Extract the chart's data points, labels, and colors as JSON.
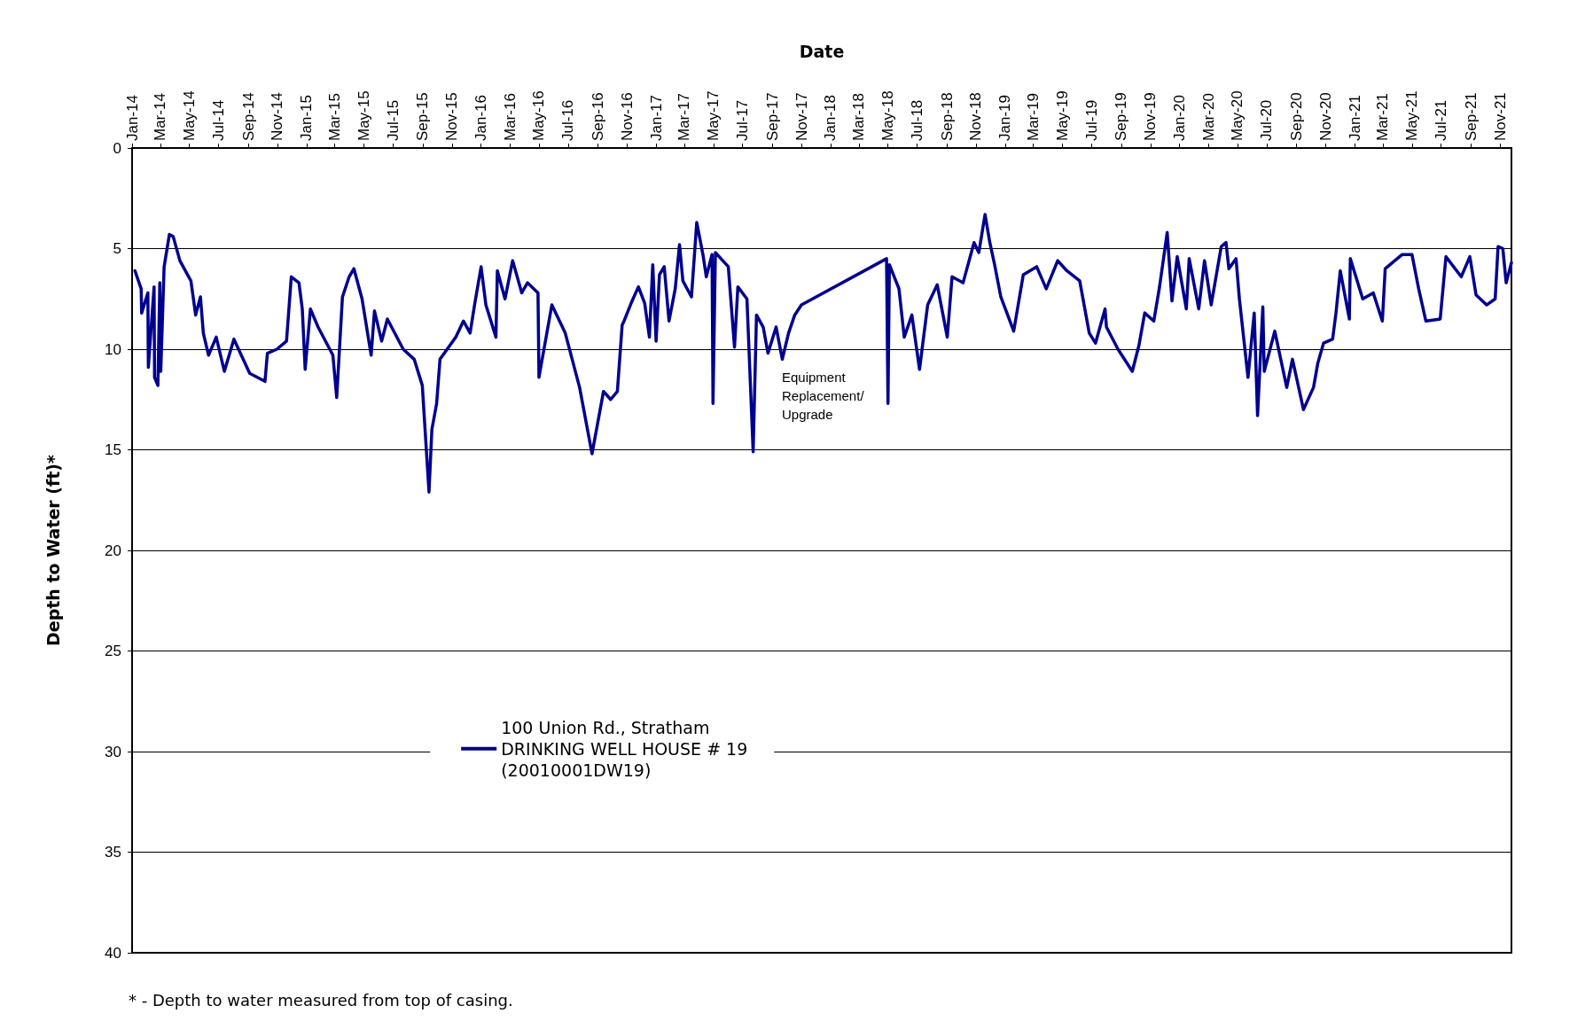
{
  "chart_data": {
    "type": "line",
    "xlabel": "Date",
    "ylabel": "Depth to Water (ft)*",
    "xlim": [
      "2014-01-01",
      "2021-11-25"
    ],
    "xticks": [
      {
        "value": "2014-01-01",
        "label": "Jan-14"
      },
      {
        "value": "2014-03-01",
        "label": "Mar-14"
      },
      {
        "value": "2014-05-01",
        "label": "May-14"
      },
      {
        "value": "2014-07-01",
        "label": "Jul-14"
      },
      {
        "value": "2014-09-01",
        "label": "Sep-14"
      },
      {
        "value": "2014-11-01",
        "label": "Nov-14"
      },
      {
        "value": "2015-01-01",
        "label": "Jan-15"
      },
      {
        "value": "2015-03-01",
        "label": "Mar-15"
      },
      {
        "value": "2015-05-01",
        "label": "May-15"
      },
      {
        "value": "2015-07-01",
        "label": "Jul-15"
      },
      {
        "value": "2015-09-01",
        "label": "Sep-15"
      },
      {
        "value": "2015-11-01",
        "label": "Nov-15"
      },
      {
        "value": "2016-01-01",
        "label": "Jan-16"
      },
      {
        "value": "2016-03-01",
        "label": "Mar-16"
      },
      {
        "value": "2016-05-01",
        "label": "May-16"
      },
      {
        "value": "2016-07-01",
        "label": "Jul-16"
      },
      {
        "value": "2016-09-01",
        "label": "Sep-16"
      },
      {
        "value": "2016-11-01",
        "label": "Nov-16"
      },
      {
        "value": "2017-01-01",
        "label": "Jan-17"
      },
      {
        "value": "2017-03-01",
        "label": "Mar-17"
      },
      {
        "value": "2017-05-01",
        "label": "May-17"
      },
      {
        "value": "2017-07-01",
        "label": "Jul-17"
      },
      {
        "value": "2017-09-01",
        "label": "Sep-17"
      },
      {
        "value": "2017-11-01",
        "label": "Nov-17"
      },
      {
        "value": "2018-01-01",
        "label": "Jan-18"
      },
      {
        "value": "2018-03-01",
        "label": "Mar-18"
      },
      {
        "value": "2018-05-01",
        "label": "May-18"
      },
      {
        "value": "2018-07-01",
        "label": "Jul-18"
      },
      {
        "value": "2018-09-01",
        "label": "Sep-18"
      },
      {
        "value": "2018-11-01",
        "label": "Nov-18"
      },
      {
        "value": "2019-01-01",
        "label": "Jan-19"
      },
      {
        "value": "2019-03-01",
        "label": "Mar-19"
      },
      {
        "value": "2019-05-01",
        "label": "May-19"
      },
      {
        "value": "2019-07-01",
        "label": "Jul-19"
      },
      {
        "value": "2019-09-01",
        "label": "Sep-19"
      },
      {
        "value": "2019-11-01",
        "label": "Nov-19"
      },
      {
        "value": "2020-01-01",
        "label": "Jan-20"
      },
      {
        "value": "2020-03-01",
        "label": "Mar-20"
      },
      {
        "value": "2020-05-01",
        "label": "May-20"
      },
      {
        "value": "2020-07-01",
        "label": "Jul-20"
      },
      {
        "value": "2020-09-01",
        "label": "Sep-20"
      },
      {
        "value": "2020-11-01",
        "label": "Nov-20"
      },
      {
        "value": "2021-01-01",
        "label": "Jan-21"
      },
      {
        "value": "2021-03-01",
        "label": "Mar-21"
      },
      {
        "value": "2021-05-01",
        "label": "May-21"
      },
      {
        "value": "2021-07-01",
        "label": "Jul-21"
      },
      {
        "value": "2021-09-01",
        "label": "Sep-21"
      },
      {
        "value": "2021-11-01",
        "label": "Nov-21"
      }
    ],
    "ylim": [
      40,
      0
    ],
    "yticks": [
      0,
      5,
      10,
      15,
      20,
      25,
      30,
      35,
      40
    ],
    "grid": "y",
    "legend": "bottom",
    "marker": "none",
    "line_style": "solid",
    "annotations": [
      "Equipment Replacement/ Upgrade",
      "* - Depth to water measured from top of casing."
    ],
    "series": [
      {
        "name": "100 Union Rd., Stratham\nDRINKING WELL HOUSE # 19\n(20010001DW19)",
        "color": "#000090",
        "x": [
          "2014-01-07",
          "2014-01-20",
          "2014-01-21",
          "2014-02-03",
          "2014-02-04",
          "2014-02-16",
          "2014-02-17",
          "2014-02-24",
          "2014-02-28",
          "2014-03-02",
          "2014-03-09",
          "2014-03-20",
          "2014-03-28",
          "2014-04-11",
          "2014-05-04",
          "2014-05-14",
          "2014-05-24",
          "2014-05-30",
          "2014-06-10",
          "2014-06-26",
          "2014-07-13",
          "2014-08-02",
          "2014-09-04",
          "2014-10-06",
          "2014-10-11",
          "2014-10-31",
          "2014-11-20",
          "2014-11-30",
          "2014-12-16",
          "2014-12-23",
          "2014-12-29",
          "2015-01-09",
          "2015-01-25",
          "2015-02-25",
          "2015-03-05",
          "2015-03-17",
          "2015-03-31",
          "2015-04-10",
          "2015-04-27",
          "2015-05-16",
          "2015-05-23",
          "2015-06-07",
          "2015-06-19",
          "2015-07-22",
          "2015-08-14",
          "2015-08-31",
          "2015-09-14",
          "2015-09-20",
          "2015-09-30",
          "2015-10-07",
          "2015-11-09",
          "2015-11-25",
          "2015-12-09",
          "2015-12-19",
          "2016-01-01",
          "2016-01-11",
          "2016-02-01",
          "2016-02-04",
          "2016-02-20",
          "2016-03-07",
          "2016-03-26",
          "2016-04-07",
          "2016-04-29",
          "2016-05-01",
          "2016-05-28",
          "2016-06-25",
          "2016-07-25",
          "2016-08-20",
          "2016-09-13",
          "2016-09-28",
          "2016-10-12",
          "2016-10-22",
          "2016-10-26",
          "2016-11-10",
          "2016-11-25",
          "2016-12-08",
          "2016-12-18",
          "2016-12-25",
          "2017-01-01",
          "2017-01-08",
          "2017-01-18",
          "2017-01-28",
          "2017-02-10",
          "2017-02-19",
          "2017-02-26",
          "2017-03-16",
          "2017-03-27",
          "2017-04-09",
          "2017-04-16",
          "2017-04-28",
          "2017-04-30",
          "2017-05-05",
          "2017-06-01",
          "2017-06-14",
          "2017-06-21",
          "2017-07-10",
          "2017-07-23",
          "2017-07-30",
          "2017-08-13",
          "2017-08-23",
          "2017-09-09",
          "2017-09-22",
          "2017-10-05",
          "2017-10-18",
          "2017-11-01",
          "2018-04-28",
          "2018-05-01",
          "2018-05-04",
          "2018-05-24",
          "2018-06-04",
          "2018-06-20",
          "2018-07-06",
          "2018-07-23",
          "2018-08-12",
          "2018-09-02",
          "2018-09-12",
          "2018-10-05",
          "2018-10-28",
          "2018-11-07",
          "2018-11-20",
          "2018-11-30",
          "2018-12-10",
          "2018-12-23",
          "2019-01-19",
          "2019-02-08",
          "2019-03-08",
          "2019-03-28",
          "2019-04-21",
          "2019-05-10",
          "2019-06-06",
          "2019-06-26",
          "2019-07-09",
          "2019-07-29",
          "2019-08-01",
          "2019-08-25",
          "2019-09-24",
          "2019-10-08",
          "2019-10-20",
          "2019-11-08",
          "2019-11-20",
          "2019-12-06",
          "2019-12-16",
          "2019-12-27",
          "2020-01-15",
          "2020-01-21",
          "2020-02-10",
          "2020-02-22",
          "2020-03-07",
          "2020-03-28",
          "2020-04-07",
          "2020-04-13",
          "2020-04-28",
          "2020-05-05",
          "2020-05-23",
          "2020-06-05",
          "2020-06-12",
          "2020-06-23",
          "2020-06-26",
          "2020-07-18",
          "2020-08-12",
          "2020-08-24",
          "2020-09-16",
          "2020-10-07",
          "2020-10-16",
          "2020-10-28",
          "2020-11-16",
          "2020-11-23",
          "2020-12-02",
          "2020-12-21",
          "2020-12-23",
          "2021-01-18",
          "2021-02-09",
          "2021-02-28",
          "2021-03-06",
          "2021-04-10",
          "2021-05-01",
          "2021-05-15",
          "2021-05-30",
          "2021-06-29",
          "2021-07-11",
          "2021-08-12",
          "2021-08-30",
          "2021-09-12",
          "2021-10-04",
          "2021-10-22",
          "2021-10-28",
          "2021-11-07",
          "2021-11-14",
          "2021-11-25"
        ],
        "values": [
          6.1,
          7.0,
          8.2,
          7.2,
          10.9,
          6.9,
          11.4,
          11.8,
          6.7,
          11.1,
          5.9,
          4.3,
          4.4,
          5.6,
          6.6,
          8.3,
          7.4,
          9.2,
          10.3,
          9.4,
          11.1,
          9.5,
          11.2,
          11.6,
          10.2,
          10.0,
          9.6,
          6.4,
          6.7,
          8.0,
          11.0,
          8.0,
          8.9,
          10.3,
          12.4,
          7.4,
          6.4,
          6.0,
          7.5,
          10.3,
          8.1,
          9.6,
          8.5,
          10.0,
          10.5,
          11.8,
          17.1,
          14.0,
          12.7,
          10.5,
          9.4,
          8.6,
          9.2,
          7.7,
          5.9,
          7.8,
          9.4,
          6.1,
          7.5,
          5.6,
          7.2,
          6.7,
          7.2,
          11.4,
          7.8,
          9.2,
          11.9,
          15.2,
          12.1,
          12.5,
          12.1,
          8.8,
          8.6,
          7.7,
          6.9,
          7.7,
          9.4,
          5.8,
          9.6,
          6.3,
          5.9,
          8.6,
          7.0,
          4.8,
          6.6,
          7.4,
          3.7,
          5.3,
          6.4,
          5.3,
          12.7,
          5.2,
          5.9,
          9.9,
          6.9,
          7.5,
          15.1,
          8.3,
          8.9,
          10.2,
          8.9,
          10.5,
          9.2,
          8.3,
          7.8,
          5.5,
          12.7,
          5.8,
          7.0,
          9.4,
          8.3,
          11.0,
          7.8,
          6.8,
          9.4,
          6.4,
          6.7,
          4.7,
          5.2,
          3.3,
          4.7,
          5.8,
          7.4,
          9.1,
          6.3,
          5.9,
          7.0,
          5.6,
          6.1,
          6.6,
          9.2,
          9.7,
          8.0,
          8.9,
          10.0,
          11.1,
          9.8,
          8.2,
          8.6,
          6.9,
          4.2,
          7.6,
          5.4,
          8.0,
          5.5,
          8.0,
          5.6,
          7.8,
          4.9,
          4.7,
          6.0,
          5.5,
          7.5,
          11.4,
          8.2,
          13.3,
          7.9,
          11.1,
          9.1,
          11.9,
          10.5,
          13.0,
          11.9,
          10.7,
          9.7,
          9.5,
          8.2,
          6.1,
          8.5,
          5.5,
          7.5,
          7.2,
          8.6,
          6.0,
          5.3,
          5.3,
          7.0,
          8.6,
          8.5,
          5.4,
          6.4,
          5.4,
          7.3,
          7.8,
          7.5,
          4.9,
          5.0,
          6.7,
          5.7
        ]
      }
    ]
  }
}
